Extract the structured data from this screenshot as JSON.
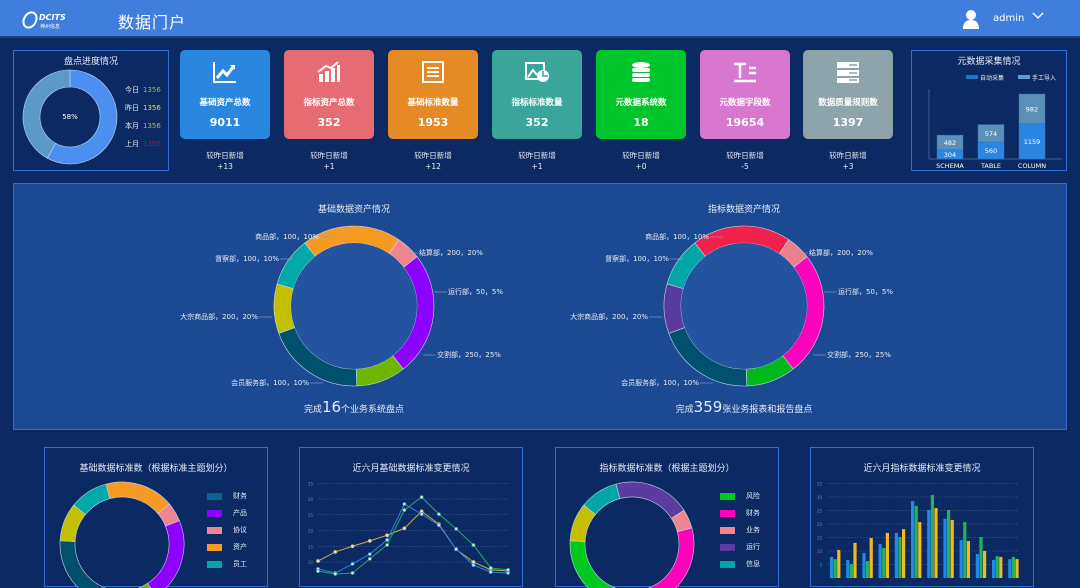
{
  "header": {
    "logo_text": "DCITS",
    "logo_sub": "神州信息",
    "title": "数据门户",
    "user": "admin",
    "icons": [
      "user-icon",
      "chevron-down-icon"
    ]
  },
  "progress": {
    "title": "盘点进度情况",
    "percent_label": "58%",
    "percent": 58,
    "colors": [
      "#4d8ff0",
      "#5a99c8"
    ],
    "items": [
      {
        "label": "今日",
        "value": "1356",
        "color": "#7ed321"
      },
      {
        "label": "昨日",
        "value": "1356",
        "color": "#e6e600"
      },
      {
        "label": "本月",
        "value": "1356",
        "color": "#d9a14a"
      },
      {
        "label": "上月",
        "value": "1356",
        "color": "#d0021b"
      }
    ]
  },
  "cards": [
    {
      "label": "基础资产总数",
      "value": "9011",
      "delta_label": "较昨日新增",
      "delta": "+13",
      "color": "#2a87e0",
      "icon": "trend-chart-icon"
    },
    {
      "label": "指标资产总数",
      "value": "352",
      "delta_label": "较昨日新增",
      "delta": "+1",
      "color": "#e66b72",
      "icon": "bar-growth-icon"
    },
    {
      "label": "基础标准数量",
      "value": "1953",
      "delta_label": "较昨日新增",
      "delta": "+12",
      "color": "#e68a25",
      "icon": "list-icon"
    },
    {
      "label": "指标标准数量",
      "value": "352",
      "delta_label": "较昨日新增",
      "delta": "+1",
      "color": "#3aa69a",
      "icon": "image-chart-icon"
    },
    {
      "label": "元数据系统数",
      "value": "18",
      "delta_label": "较昨日新增",
      "delta": "+0",
      "color": "#00c52a",
      "icon": "database-icon"
    },
    {
      "label": "元数据字段数",
      "value": "19654",
      "delta_label": "较昨日新增",
      "delta": "-5",
      "color": "#d877cf",
      "icon": "text-field-icon"
    },
    {
      "label": "数据质量规则数",
      "value": "1397",
      "delta_label": "较昨日新增",
      "delta": "+3",
      "color": "#8fa3aa",
      "icon": "server-icon"
    }
  ],
  "meta_chart": {
    "title": "元数据采集情况",
    "legend": [
      {
        "name": "自动采集",
        "color": "#1f74c4"
      },
      {
        "name": "手工导入",
        "color": "#5d9ccc"
      }
    ],
    "chart_data": {
      "type": "bar",
      "stacked": true,
      "categories": [
        "SCHEMA",
        "TABLE",
        "COLUMN"
      ],
      "series": [
        {
          "name": "自动采集",
          "values": [
            304,
            560,
            1159
          ],
          "color": "#2a86e0"
        },
        {
          "name": "手工导入",
          "values": [
            482,
            574,
            982
          ],
          "color": "#5b90b8"
        }
      ]
    }
  },
  "donut_basic": {
    "title": "基础数据资产情况",
    "footer_pre": "完成",
    "footer_num": "16",
    "footer_post": "个业务系统盘点",
    "chart_data": {
      "type": "pie",
      "slices": [
        {
          "label": "结算部，200，20%",
          "value": 200,
          "color": "#f59b23"
        },
        {
          "label": "运行部，50，5%",
          "value": 50,
          "color": "#ee8591"
        },
        {
          "label": "交割部，250，25%",
          "value": 250,
          "color": "#8b00ff"
        },
        {
          "label": "会员服务部，100，10%",
          "value": 100,
          "color": "#6fb600"
        },
        {
          "label": "大宗商品部，200，20%",
          "value": 200,
          "color": "#02506e"
        },
        {
          "label": "督察部，100，10%",
          "value": 100,
          "color": "#c4c000"
        },
        {
          "label": "商品部，100，10%",
          "value": 100,
          "color": "#00a8a8"
        }
      ]
    }
  },
  "donut_index": {
    "title": "指标数据资产情况",
    "footer_pre": "完成",
    "footer_num": "359",
    "footer_post": "张业务报表和报告盘点",
    "chart_data": {
      "type": "pie",
      "slices": [
        {
          "label": "结算部，200，20%",
          "value": 200,
          "color": "#f0224c"
        },
        {
          "label": "运行部，50，5%",
          "value": 50,
          "color": "#e9808c"
        },
        {
          "label": "交割部，250，25%",
          "value": 250,
          "color": "#ff00bb"
        },
        {
          "label": "会员服务部，100，10%",
          "value": 100,
          "color": "#00b81c"
        },
        {
          "label": "大宗商品部，200，20%",
          "value": 200,
          "color": "#01506f"
        },
        {
          "label": "督察部，100，10%",
          "value": 100,
          "color": "#5a3c9e"
        },
        {
          "label": "商品部，100，10%",
          "value": 100,
          "color": "#00a5a5"
        }
      ]
    }
  },
  "std_basic": {
    "title": "基础数据标准数（根据标准主题划分）",
    "chart_data": {
      "type": "pie",
      "slices": [
        {
          "name": "资产",
          "value": 18,
          "color": "#f59b23"
        },
        {
          "name": "协议",
          "value": 5,
          "color": "#ee8591"
        },
        {
          "name": "产品",
          "value": 22,
          "color": "#8b00ff"
        },
        {
          "name": "",
          "value": 10,
          "color": "#6fb600"
        },
        {
          "name": "财务",
          "value": 25,
          "color": "#02506e"
        },
        {
          "name": "",
          "value": 10,
          "color": "#c4c000"
        },
        {
          "name": "员工",
          "value": 10,
          "color": "#00a8a8"
        }
      ],
      "legend": [
        {
          "name": "财务",
          "color": "#02688c"
        },
        {
          "name": "产品",
          "color": "#8b00ff"
        },
        {
          "name": "协议",
          "color": "#ee8591"
        },
        {
          "name": "资产",
          "color": "#f59b23"
        },
        {
          "name": "员工",
          "color": "#00a8a8"
        }
      ]
    }
  },
  "std_index": {
    "title": "指标数据标准数（根据主题划分）",
    "chart_data": {
      "type": "pie",
      "slices": [
        {
          "name": "运行",
          "value": 20,
          "color": "#5a3c9e"
        },
        {
          "name": "业务",
          "value": 5,
          "color": "#ee8591"
        },
        {
          "name": "财务",
          "value": 25,
          "color": "#ff00bb"
        },
        {
          "name": "风险",
          "value": 30,
          "color": "#00c81c"
        },
        {
          "name": "",
          "value": 10,
          "color": "#c4c000"
        },
        {
          "name": "信息",
          "value": 10,
          "color": "#00a5a5"
        }
      ],
      "legend": [
        {
          "name": "风险",
          "color": "#00c81c"
        },
        {
          "name": "财务",
          "color": "#ff00bb"
        },
        {
          "name": "业务",
          "color": "#ee8591"
        },
        {
          "name": "运行",
          "color": "#5a3c9e"
        },
        {
          "name": "信息",
          "color": "#00a5a5"
        }
      ]
    }
  },
  "line_chart": {
    "title": "近六月基础数据标准变更情况",
    "chart_data": {
      "type": "line",
      "yticks": [
        10,
        15,
        20,
        25,
        30,
        35
      ],
      "ylim": [
        5,
        35
      ],
      "grid": true,
      "series": [
        {
          "color": "#c9b04a",
          "values": [
            10.3,
            13.2,
            15,
            16.7,
            18.5,
            20.7,
            26.1,
            22,
            14,
            10,
            7.5,
            7.2
          ]
        },
        {
          "color": "#2a86e0",
          "values": [
            7.8,
            6.5,
            9.4,
            12.5,
            17,
            28.4,
            25.2,
            21.7,
            14.1,
            9,
            6.8,
            6.5
          ]
        },
        {
          "color": "#2ea36a",
          "values": [
            7.1,
            6.2,
            6.5,
            11,
            15.4,
            26.5,
            30.6,
            25.2,
            20.5,
            15.4,
            8.1,
            7.5
          ]
        }
      ]
    }
  },
  "bar_chart": {
    "title": "近六月指标数据标准变更情况",
    "chart_data": {
      "type": "bar",
      "yticks": [
        5,
        10,
        15,
        20,
        25,
        30,
        35
      ],
      "ylim": [
        0,
        35
      ],
      "grid": true,
      "series": [
        {
          "color": "#1f8ae8",
          "values": [
            7.8,
            6.7,
            9.3,
            12.6,
            16.7,
            28.5,
            25.2,
            21.9,
            14.1,
            8.9,
            6.7,
            7
          ]
        },
        {
          "color": "#2bb155",
          "values": [
            7,
            5.2,
            6.3,
            11.1,
            15.2,
            26.7,
            30.7,
            25.2,
            20.7,
            15.2,
            8.1,
            7.8
          ]
        },
        {
          "color": "#f2b81c",
          "values": [
            10.4,
            13,
            14.8,
            16.7,
            18.1,
            20.7,
            25.9,
            21.5,
            13.7,
            10,
            7.8,
            7
          ]
        }
      ]
    }
  }
}
